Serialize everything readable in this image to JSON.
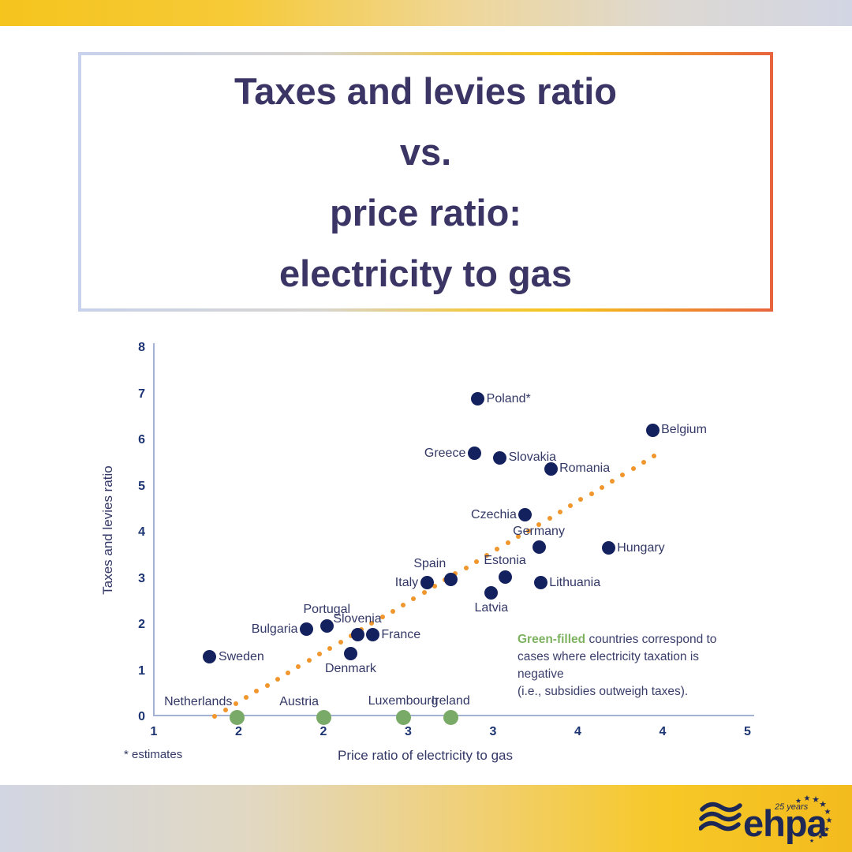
{
  "title": {
    "lines": [
      "Taxes and levies ratio",
      "vs.",
      "price ratio:",
      "electricity to gas"
    ]
  },
  "chart_data": {
    "type": "scatter",
    "xlabel": "Price ratio of electricity to gas",
    "ylabel": "Taxes and levies ratio",
    "footnote": "* estimates",
    "x_axis": {
      "min": 1,
      "max": 4.5,
      "tick_values": [
        1,
        1.5,
        2,
        2.5,
        3,
        3.5,
        4,
        4.5
      ],
      "tick_labels": [
        "1",
        "2",
        "2",
        "3",
        "3",
        "4",
        "4",
        "5"
      ]
    },
    "y_axis": {
      "min": 0,
      "max": 8,
      "tick_values": [
        0,
        1,
        2,
        3,
        4,
        5,
        6,
        7,
        8
      ],
      "tick_labels": [
        "0",
        "1",
        "2",
        "3",
        "4",
        "5",
        "6",
        "7",
        "8"
      ]
    },
    "series": [
      {
        "name": "countries",
        "color": "#14215f",
        "dot_size": 17,
        "points": [
          {
            "name": "Sweden",
            "x": 1.33,
            "y": 1.3,
            "label_placement": "right"
          },
          {
            "name": "Bulgaria",
            "x": 1.9,
            "y": 1.9,
            "label_placement": "left"
          },
          {
            "name": "Portugal",
            "x": 2.02,
            "y": 1.98,
            "label_placement": "above"
          },
          {
            "name": "Denmark",
            "x": 2.16,
            "y": 1.38,
            "label_placement": "below"
          },
          {
            "name": "Slovenia",
            "x": 2.2,
            "y": 1.78,
            "label_placement": "above"
          },
          {
            "name": "France",
            "x": 2.29,
            "y": 1.78,
            "label_placement": "right"
          },
          {
            "name": "Italy",
            "x": 2.61,
            "y": 2.91,
            "label_placement": "left"
          },
          {
            "name": "Spain",
            "x": 2.75,
            "y": 2.99,
            "label_placement": "above-left"
          },
          {
            "name": "Greece",
            "x": 2.89,
            "y": 5.71,
            "label_placement": "left"
          },
          {
            "name": "Poland*",
            "x": 2.91,
            "y": 6.89,
            "label_placement": "right"
          },
          {
            "name": "Latvia",
            "x": 2.99,
            "y": 2.7,
            "label_placement": "below"
          },
          {
            "name": "Slovakia",
            "x": 3.04,
            "y": 5.62,
            "label_placement": "right"
          },
          {
            "name": "Estonia",
            "x": 3.07,
            "y": 3.04,
            "label_placement": "above"
          },
          {
            "name": "Czechia",
            "x": 3.19,
            "y": 4.38,
            "label_placement": "left"
          },
          {
            "name": "Germany",
            "x": 3.27,
            "y": 3.68,
            "label_placement": "above"
          },
          {
            "name": "Lithuania",
            "x": 3.28,
            "y": 2.91,
            "label_placement": "right"
          },
          {
            "name": "Romania",
            "x": 3.34,
            "y": 5.38,
            "label_placement": "right"
          },
          {
            "name": "Hungary",
            "x": 3.68,
            "y": 3.66,
            "label_placement": "right"
          },
          {
            "name": "Belgium",
            "x": 3.94,
            "y": 6.22,
            "label_placement": "right"
          }
        ]
      },
      {
        "name": "negative-taxation-countries",
        "color": "#79aa67",
        "dot_size": 19,
        "points": [
          {
            "name": "Netherlands",
            "x": 1.49,
            "y": 0,
            "label_placement": "above-left"
          },
          {
            "name": "Austria",
            "x": 2.0,
            "y": 0,
            "label_placement": "above-left"
          },
          {
            "name": "Luxembourg",
            "x": 2.47,
            "y": 0,
            "label_placement": "above"
          },
          {
            "name": "Ireland",
            "x": 2.75,
            "y": 0,
            "label_placement": "above"
          }
        ]
      }
    ],
    "trendline": {
      "style": "dotted",
      "color": "#f0962d",
      "x1": 1.36,
      "y1": 0.02,
      "x2": 3.95,
      "y2": 5.65,
      "dots": 43
    },
    "note": {
      "highlight": "Green-filled",
      "line1_rest": " countries correspond to",
      "line2": "cases where electricity taxation is",
      "line3": "negative",
      "line4": "(i.e., subsidies outweigh taxes)."
    }
  },
  "logo": {
    "wordmark": "ehpa",
    "badge": "25 years"
  }
}
